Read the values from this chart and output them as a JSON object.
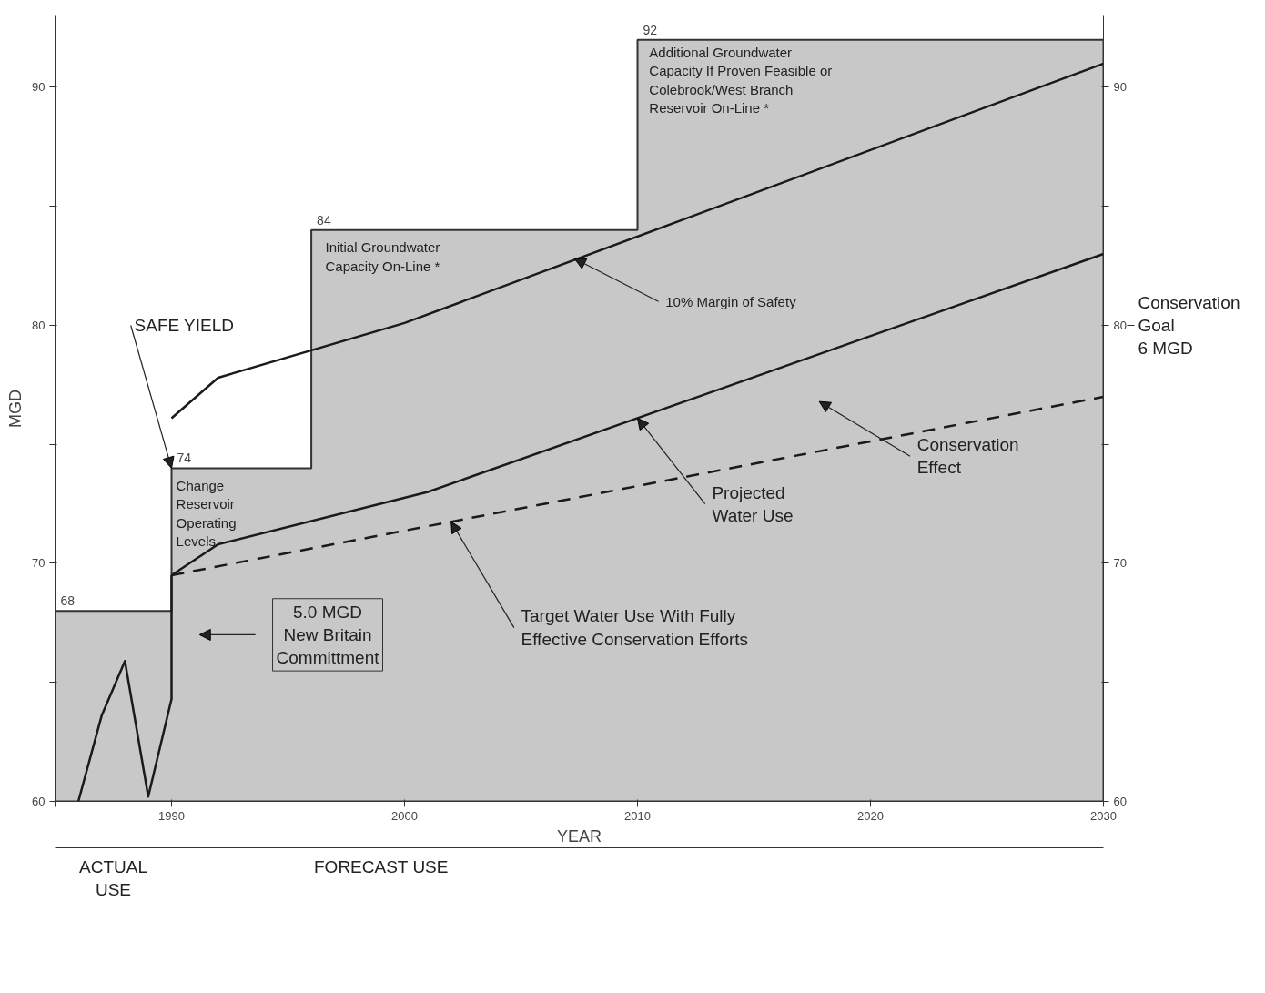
{
  "chart_data": {
    "type": "line",
    "xlabel": "YEAR",
    "ylabel": "MGD",
    "xlim": [
      1985,
      2030
    ],
    "ylim": [
      60,
      93
    ],
    "xticks": [
      {
        "value": 1985,
        "label": null
      },
      1990,
      {
        "value": 1995,
        "label": null
      },
      2000,
      {
        "value": 2005,
        "label": null
      },
      2010,
      {
        "value": 2015,
        "label": null
      },
      2020,
      {
        "value": 2025,
        "label": null
      },
      2030
    ],
    "yticks": [
      60,
      {
        "value": 65,
        "label": null
      },
      70,
      {
        "value": 75,
        "label": null
      },
      80,
      {
        "value": 85,
        "label": null
      },
      90
    ],
    "y2lim": [
      60,
      93
    ],
    "y2ticks": [
      60,
      {
        "value": 65,
        "label": null
      },
      70,
      {
        "value": 75,
        "label": null
      },
      80,
      {
        "value": 85,
        "label": null
      },
      90
    ],
    "grid": false,
    "series": [
      {
        "type": "area",
        "color": "#c8c8c8",
        "x": [
          1985,
          1990,
          1990,
          1996,
          1996,
          2010,
          2010,
          2030
        ],
        "values": [
          68,
          68,
          74,
          74,
          84,
          84,
          92,
          92
        ],
        "value_labels": [
          "68",
          null,
          "74",
          null,
          "84",
          null,
          "92",
          null
        ]
      },
      {
        "color": "#1a1a1a",
        "x": [
          1986,
          1987,
          1988,
          1989,
          1990,
          1990
        ],
        "values": [
          60,
          63.6,
          65.9,
          60.2,
          64.3,
          69.5
        ]
      },
      {
        "color": "#1a1a1a",
        "x": [
          1990,
          1992,
          2001,
          2030
        ],
        "values": [
          69.5,
          70.8,
          73.0,
          83.0
        ]
      },
      {
        "color": "#1a1a1a",
        "line_style": "dashed",
        "x": [
          1990,
          2030
        ],
        "values": [
          69.5,
          77.0
        ]
      },
      {
        "color": "#1a1a1a",
        "x": [
          1990,
          1992,
          2000,
          2030
        ],
        "values": [
          76.1,
          77.8,
          80.1,
          91.0
        ]
      }
    ],
    "annotations": [
      {
        "text": "SAFE YIELD",
        "x": 1990,
        "y": 74
      },
      "Change\nReservoir\nOperating\nLevels",
      "Initial Groundwater\nCapacity On-Line *",
      "Additional Groundwater\nCapacity If Proven Feasible or\nColebrook/West Branch\nReservoir On-Line *",
      {
        "text": "10% Margin of Safety",
        "x": 2007.3,
        "y": 82.8
      },
      {
        "text": "Projected\nWater Use",
        "x": 2010,
        "y": 76.1
      },
      {
        "text": "Target Water Use With Fully\nEffective Conservation Efforts",
        "x": 2002,
        "y": 71.75
      },
      "Conservation\nEffect",
      "5.0 MGD\nNew Britain\nCommittment",
      "Conservation\nGoal\n6 MGD",
      "ACTUAL\nUSE",
      "FORECAST USE"
    ]
  }
}
